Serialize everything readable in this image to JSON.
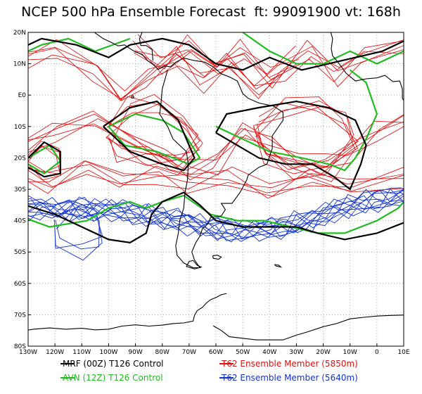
{
  "title": "NCEP 500 hPa Ensemble Forecast  ft: 99091900 vt: 168h",
  "map": {
    "lon_range": [
      -130,
      10
    ],
    "lat_range": [
      -80,
      20
    ],
    "lon_ticks": [
      "130W",
      "120W",
      "110W",
      "100W",
      "90W",
      "80W",
      "70W",
      "60W",
      "50W",
      "40W",
      "30W",
      "20W",
      "10W",
      "0",
      "10E"
    ],
    "lat_ticks": [
      "20N",
      "10N",
      "E0",
      "10S",
      "20S",
      "30S",
      "40S",
      "50S",
      "60S",
      "70S",
      "80S"
    ],
    "grid": "dotted"
  },
  "legend": [
    {
      "label": "MRF (00Z) T126 Control",
      "color": "#000000"
    },
    {
      "label": "AVN (12Z) T126 Control",
      "color": "#22bb22"
    },
    {
      "label": "T62 Ensemble Member (5850m)",
      "color": "#dd1111"
    },
    {
      "label": "T62 Ensemble Member (5640m)",
      "color": "#1133cc"
    }
  ],
  "colors": {
    "mrf": "#000000",
    "avn": "#22bb22",
    "red_members": "#dd1111",
    "blue_members": "#1133cc"
  }
}
